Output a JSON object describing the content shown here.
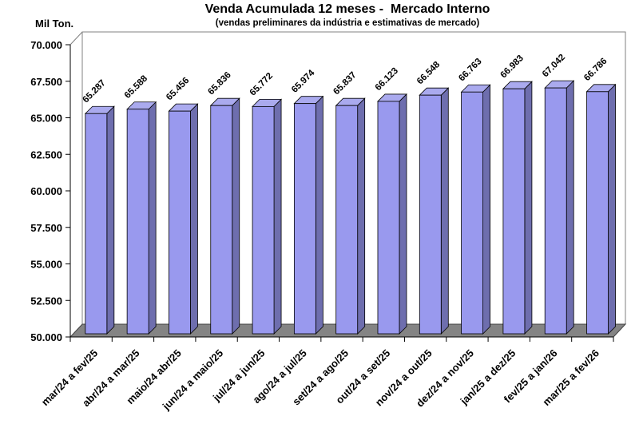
{
  "chart": {
    "title": "Venda Acumulada 12 meses -  Mercado Interno",
    "subtitle": "(vendas preliminares da indústria e estimativas de mercado)",
    "y_axis_title": "Mil Ton."
  },
  "chart_data": {
    "type": "bar",
    "style": "3d-column",
    "title": "Venda Acumulada 12 meses -  Mercado Interno",
    "subtitle": "(vendas preliminares da indústria e estimativas de mercado)",
    "xlabel": "",
    "ylabel": "Mil Ton.",
    "ylim": [
      50000,
      70000
    ],
    "ytick_step": 2500,
    "ytick_labels": [
      "70.000",
      "67.500",
      "65.000",
      "62.500",
      "60.000",
      "57.500",
      "55.000",
      "52.500",
      "50.000"
    ],
    "grid": false,
    "legend": false,
    "categories": [
      "mar/24 a fev/25",
      "abr/24 a mar/25",
      "maio/24 abr/25",
      "jun/24 a maio/25",
      "jul/24 a jun/25",
      "ago/24 a jul/25",
      "set/24 a ago/25",
      "out/24 a set/25",
      "nov/24 a out/25",
      "dez/24 a nov/25",
      "jan/25 a dez/25",
      "fev/25 a jan/26",
      "mar/25 a fev/26"
    ],
    "values": [
      65287,
      65588,
      65456,
      65836,
      65772,
      65974,
      65837,
      66123,
      66548,
      66763,
      66983,
      67042,
      66786
    ],
    "value_labels": [
      "65.287",
      "65.588",
      "65.456",
      "65.836",
      "65.772",
      "65.974",
      "65.837",
      "66.123",
      "66.548",
      "66.763",
      "66.983",
      "67.042",
      "66.786"
    ],
    "colors": {
      "bar_front": "#9999EE",
      "bar_side": "#6E6EAE",
      "bar_top": "#AAAAEE",
      "bar_outline": "#000000",
      "floor": "#848484",
      "floor_outline": "#404040",
      "wall_border": "#808080",
      "axis": "#000000",
      "text": "#000000",
      "background": "#FFFFFF"
    }
  }
}
